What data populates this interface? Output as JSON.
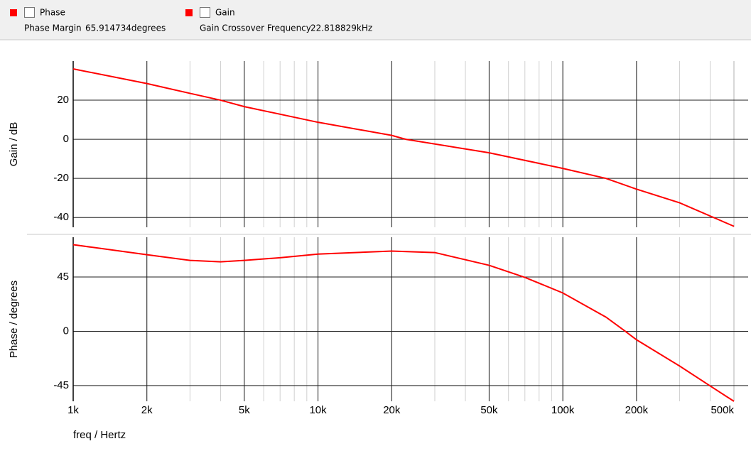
{
  "header": {
    "items": [
      {
        "label": "Phase",
        "readout_label": "Phase Margin",
        "readout_value": "65.914734degrees"
      },
      {
        "label": "Gain",
        "readout_label": "Gain Crossover Frequency",
        "readout_value": "22.818829kHz"
      }
    ]
  },
  "chart_data": [
    {
      "type": "line",
      "y_label": "Gain / dB",
      "log_x": true,
      "x": [
        1000,
        2000,
        3000,
        4000,
        5000,
        10000,
        20000,
        22818.829,
        50000,
        100000,
        150000,
        200000,
        300000,
        500000
      ],
      "series": [
        {
          "name": "Gain",
          "color": "#ff0000",
          "values": [
            36,
            28.5,
            23.5,
            20,
            16.7,
            8.7,
            2,
            0,
            -6.9,
            -14.9,
            -20,
            -25.5,
            -32.5,
            -44.5
          ]
        }
      ],
      "xlim": [
        1000,
        500000
      ],
      "xticks": [
        {
          "value": 1000,
          "label": "1k"
        },
        {
          "value": 2000,
          "label": "2k"
        },
        {
          "value": 5000,
          "label": "5k"
        },
        {
          "value": 10000,
          "label": "10k"
        },
        {
          "value": 20000,
          "label": "20k"
        },
        {
          "value": 50000,
          "label": "50k"
        },
        {
          "value": 100000,
          "label": "100k"
        },
        {
          "value": 200000,
          "label": "200k"
        },
        {
          "value": 500000,
          "label": "500k"
        }
      ],
      "ylim": [
        -45,
        40
      ],
      "yticks": [
        -40,
        -20,
        0,
        20
      ],
      "grid": true
    },
    {
      "type": "line",
      "y_label": "Phase / degrees",
      "x_label": "freq / Hertz",
      "log_x": true,
      "x": [
        1000,
        2000,
        3000,
        4000,
        5000,
        7000,
        10000,
        20000,
        30000,
        50000,
        70000,
        100000,
        150000,
        180000,
        200000,
        300000,
        400000,
        500000
      ],
      "series": [
        {
          "name": "Phase",
          "color": "#ff0000",
          "values": [
            71.8,
            63.5,
            58.8,
            57.6,
            58.8,
            61,
            64,
            66.5,
            65.3,
            54.7,
            44.7,
            31.8,
            11.8,
            0,
            -7,
            -28.8,
            -45.3,
            -58
          ]
        }
      ],
      "xlim": [
        1000,
        500000
      ],
      "xticks": [
        {
          "value": 1000,
          "label": "1k"
        },
        {
          "value": 2000,
          "label": "2k"
        },
        {
          "value": 5000,
          "label": "5k"
        },
        {
          "value": 10000,
          "label": "10k"
        },
        {
          "value": 20000,
          "label": "20k"
        },
        {
          "value": 50000,
          "label": "50k"
        },
        {
          "value": 100000,
          "label": "100k"
        },
        {
          "value": 200000,
          "label": "200k"
        },
        {
          "value": 500000,
          "label": "500k"
        }
      ],
      "ylim": [
        -58,
        78
      ],
      "yticks": [
        -45,
        0,
        45
      ],
      "grid": true
    }
  ]
}
